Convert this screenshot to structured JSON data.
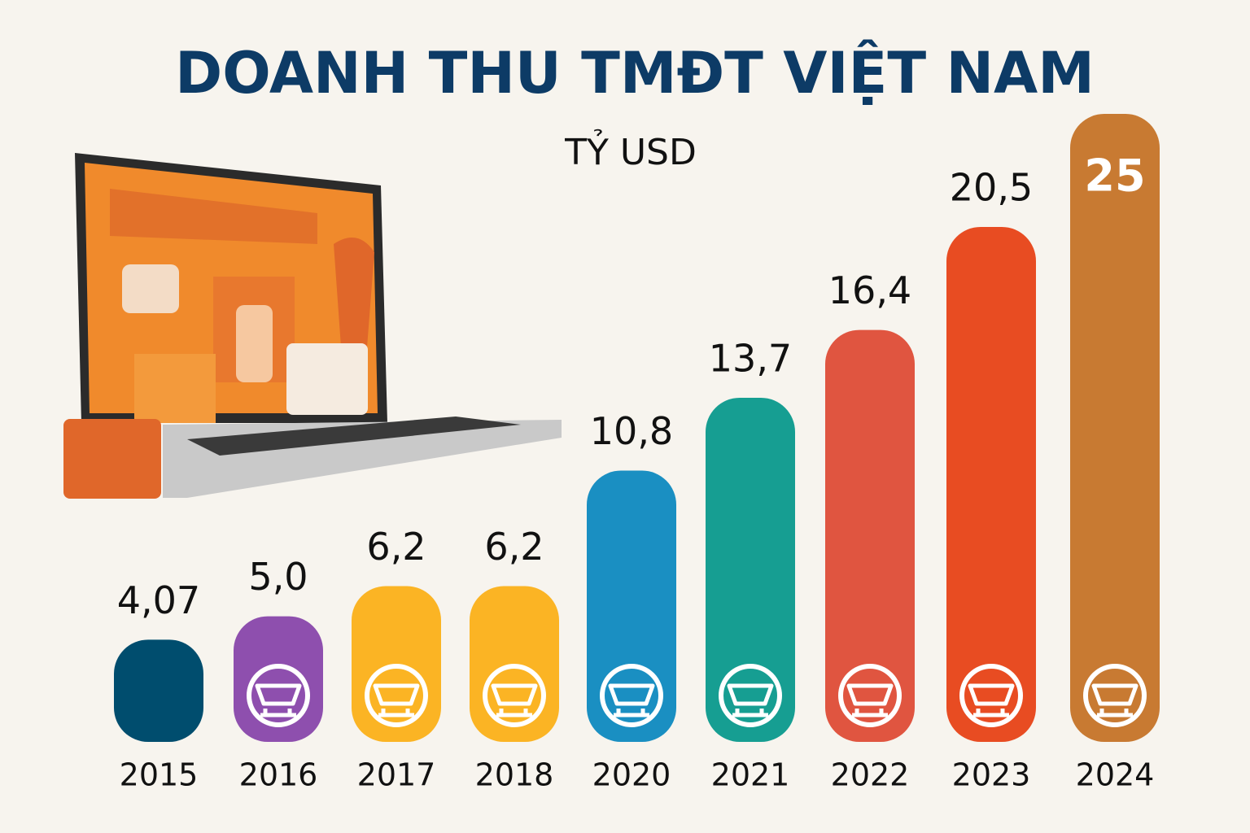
{
  "chart_data": {
    "type": "bar",
    "title": "DOANH THU TMĐT VIỆT NAM",
    "subtitle": "TỶ USD",
    "categories": [
      "2015",
      "2016",
      "2017",
      "2018",
      "2020",
      "2021",
      "2022",
      "2023",
      "2024"
    ],
    "values": [
      4.07,
      5.0,
      6.2,
      6.2,
      10.8,
      13.7,
      16.4,
      20.5,
      25
    ],
    "value_labels": [
      "4,07",
      "5,0",
      "6,2",
      "6,2",
      "10,8",
      "13,7",
      "16,4",
      "20,5",
      "25"
    ],
    "colors": [
      "#004d6e",
      "#8e4fae",
      "#fbb424",
      "#fbb424",
      "#1a8fc2",
      "#169e92",
      "#e05540",
      "#e84c22",
      "#c87a32"
    ]
  }
}
